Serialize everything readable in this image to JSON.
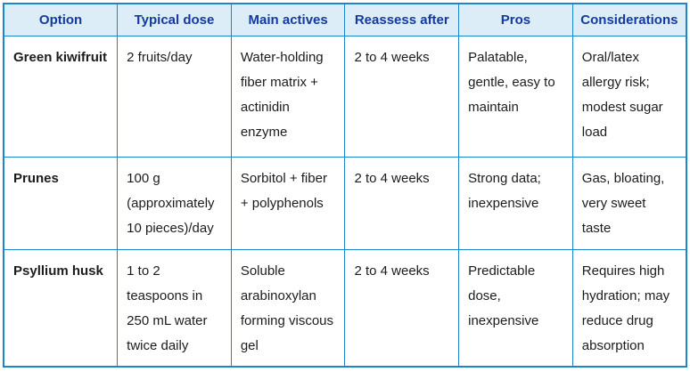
{
  "table": {
    "columns": [
      "Option",
      "Typical dose",
      "Main actives",
      "Reassess after",
      "Pros",
      "Considerations"
    ],
    "rows": [
      {
        "option": "Green kiwifruit",
        "typical_dose": "2 fruits/day",
        "main_actives": "Water-holding fiber matrix + actinidin enzyme",
        "reassess_after": "2 to 4 weeks",
        "pros": "Palatable, gentle, easy to maintain",
        "considerations": "Oral/latex allergy risk; modest sugar load"
      },
      {
        "option": "Prunes",
        "typical_dose": "100 g (approximately 10 pieces)/day",
        "main_actives": "Sorbitol + fiber + polyphenols",
        "reassess_after": "2 to 4 weeks",
        "pros": "Strong data; inexpensive",
        "considerations": "Gas, bloating, very sweet taste"
      },
      {
        "option": "Psyllium husk",
        "typical_dose": "1 to 2 teaspoons in 250 mL water twice daily",
        "main_actives": "Soluble arabinoxylan forming viscous gel",
        "reassess_after": "2 to 4 weeks",
        "pros": "Predictable dose, inexpensive",
        "considerations": "Requires high hydration; may reduce drug absorption"
      }
    ],
    "colors": {
      "header_bg": "#dcedf8",
      "header_text": "#143a9e",
      "border": "#1b87c9",
      "body_text": "#1c1c1c"
    }
  }
}
